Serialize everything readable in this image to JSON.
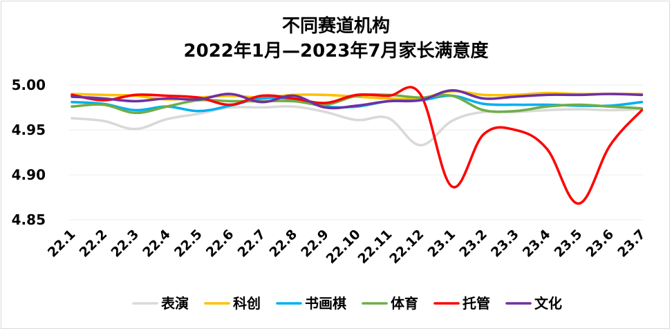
{
  "chart_data": {
    "type": "line",
    "title": [
      "不同赛道机构",
      "2022年1月—2023年7月家长满意度"
    ],
    "xlabel": "",
    "ylabel": "",
    "categories": [
      "22.1",
      "22.2",
      "22.3",
      "22.4",
      "22.5",
      "22.6",
      "22.7",
      "22.8",
      "22.9",
      "22.10",
      "22.11",
      "22.12",
      "23.1",
      "23.2",
      "23.3",
      "23.4",
      "23.5",
      "23.6",
      "23.7"
    ],
    "ylim": [
      4.85,
      5.0
    ],
    "yticks": [
      "5.00",
      "4.95",
      "4.90",
      "4.85"
    ],
    "grid": true,
    "legend_position": "bottom",
    "series": [
      {
        "name": "表演",
        "color": "#d9d9d9",
        "values": [
          4.963,
          4.96,
          4.951,
          4.962,
          4.968,
          4.975,
          4.975,
          4.976,
          4.97,
          4.961,
          4.963,
          4.933,
          4.96,
          4.97,
          4.97,
          4.972,
          4.973,
          4.972,
          4.973
        ]
      },
      {
        "name": "科创",
        "color": "#ffc000",
        "values": [
          4.99,
          4.989,
          4.988,
          4.984,
          4.986,
          4.988,
          4.986,
          4.989,
          4.989,
          4.987,
          4.985,
          4.985,
          4.993,
          4.989,
          4.989,
          4.991,
          4.99,
          4.99,
          4.99
        ]
      },
      {
        "name": "书画棋",
        "color": "#00b0f0",
        "values": [
          4.981,
          4.979,
          4.972,
          4.976,
          4.971,
          4.977,
          4.985,
          4.984,
          4.976,
          4.976,
          4.982,
          4.983,
          4.988,
          4.979,
          4.978,
          4.978,
          4.977,
          4.977,
          4.981
        ]
      },
      {
        "name": "体育",
        "color": "#70ad47",
        "values": [
          4.976,
          4.978,
          4.969,
          4.976,
          4.983,
          4.982,
          4.982,
          4.982,
          4.978,
          4.988,
          4.989,
          4.986,
          4.988,
          4.972,
          4.971,
          4.976,
          4.978,
          4.976,
          4.974
        ]
      },
      {
        "name": "托管",
        "color": "#ff0000",
        "values": [
          4.989,
          4.983,
          4.989,
          4.988,
          4.986,
          4.978,
          4.988,
          4.985,
          4.98,
          4.989,
          4.988,
          4.99,
          4.887,
          4.945,
          4.95,
          4.929,
          4.868,
          4.933,
          4.972
        ]
      },
      {
        "name": "文化",
        "color": "#7030a0",
        "values": [
          4.987,
          4.985,
          4.982,
          4.985,
          4.984,
          4.99,
          4.981,
          4.988,
          4.975,
          4.977,
          4.982,
          4.983,
          4.994,
          4.985,
          4.987,
          4.989,
          4.989,
          4.99,
          4.989
        ]
      }
    ]
  }
}
